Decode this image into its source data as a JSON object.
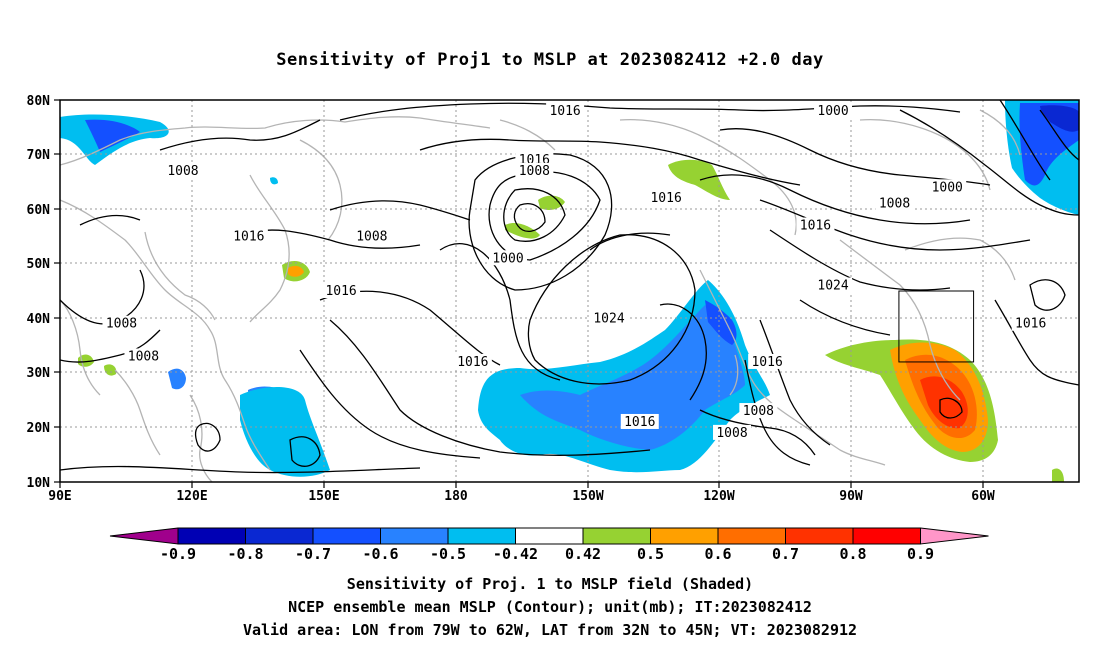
{
  "title": "Sensitivity of Proj1 to MSLP at 2023082412 +2.0 day",
  "map": {
    "lat_labels": [
      "80N",
      "70N",
      "60N",
      "50N",
      "40N",
      "30N",
      "20N",
      "10N"
    ],
    "lon_labels": [
      "90E",
      "120E",
      "150E",
      "180",
      "150W",
      "120W",
      "90W",
      "60W"
    ],
    "lon_range_deg_east": [
      90,
      322
    ],
    "lat_range": [
      10,
      80
    ],
    "grid": true,
    "contour_labels": [
      {
        "text": "1016",
        "lon": 205,
        "lat": 78
      },
      {
        "text": "1000",
        "lon": 266,
        "lat": 78
      },
      {
        "text": "1008",
        "lon": 118,
        "lat": 67
      },
      {
        "text": "1016",
        "lon": 198,
        "lat": 69
      },
      {
        "text": "1008",
        "lon": 198,
        "lat": 67
      },
      {
        "text": "1000",
        "lon": 292,
        "lat": 64
      },
      {
        "text": "1016",
        "lon": 228,
        "lat": 62
      },
      {
        "text": "1008",
        "lon": 280,
        "lat": 61
      },
      {
        "text": "1016",
        "lon": 262,
        "lat": 57
      },
      {
        "text": "1016",
        "lon": 133,
        "lat": 55
      },
      {
        "text": "1008",
        "lon": 161,
        "lat": 55
      },
      {
        "text": "1000",
        "lon": 192,
        "lat": 51
      },
      {
        "text": "1024",
        "lon": 266,
        "lat": 46
      },
      {
        "text": "1016",
        "lon": 154,
        "lat": 45
      },
      {
        "text": "1024",
        "lon": 215,
        "lat": 40
      },
      {
        "text": "1016",
        "lon": 311,
        "lat": 39
      },
      {
        "text": "1008",
        "lon": 104,
        "lat": 39
      },
      {
        "text": "1008",
        "lon": 109,
        "lat": 33
      },
      {
        "text": "1016",
        "lon": 184,
        "lat": 32
      },
      {
        "text": "1016",
        "lon": 251,
        "lat": 32
      },
      {
        "text": "1016",
        "lon": 222,
        "lat": 21
      },
      {
        "text": "1008",
        "lon": 249,
        "lat": 23
      },
      {
        "text": "1008",
        "lon": 243,
        "lat": 19
      }
    ],
    "valid_box": {
      "lon_w": 281,
      "lon_e": 298,
      "lat_s": 32,
      "lat_n": 45
    }
  },
  "colorbar": {
    "labels": [
      "-0.9",
      "-0.8",
      "-0.7",
      "-0.6",
      "-0.5",
      "-0.42",
      "0.42",
      "0.5",
      "0.6",
      "0.7",
      "0.8",
      "0.9"
    ],
    "colors": [
      "#a0008c",
      "#0000b4",
      "#0a28d2",
      "#1450ff",
      "#2882ff",
      "#00bef0",
      "#ffffff",
      "#96d232",
      "#ffa000",
      "#ff6e00",
      "#ff3200",
      "#ff0000",
      "#ff96c8"
    ]
  },
  "captions": {
    "line1": "Sensitivity of Proj. 1 to MSLP field (Shaded)",
    "line2": "NCEP ensemble mean MSLP (Contour); unit(mb); IT:2023082412",
    "line3": "Valid area: LON from 79W to 62W, LAT from 32N to 45N; VT: 2023082912"
  }
}
